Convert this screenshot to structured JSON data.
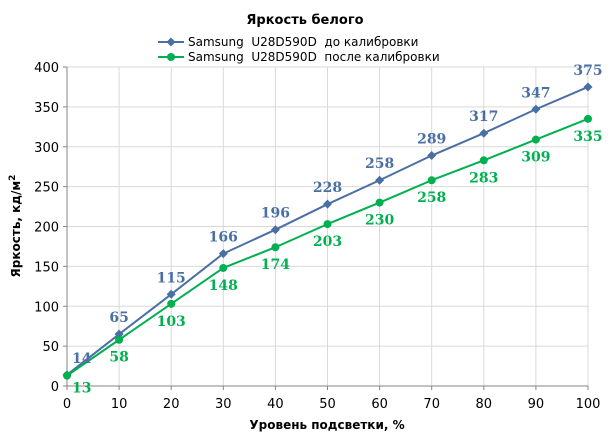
{
  "chart_data": {
    "type": "line",
    "title": "Яркость белого",
    "xlabel": "Уровень подсветки, %",
    "ylabel": "Яркость, кд/м²",
    "ylabel_main": "Яркость, кд/м",
    "ylabel_sup": "2",
    "x": [
      0,
      10,
      20,
      30,
      40,
      50,
      60,
      70,
      80,
      90,
      100
    ],
    "xlim": [
      0,
      100
    ],
    "ylim": [
      0,
      400
    ],
    "xticks": [
      0,
      10,
      20,
      30,
      40,
      50,
      60,
      70,
      80,
      90,
      100
    ],
    "yticks": [
      0,
      50,
      100,
      150,
      200,
      250,
      300,
      350,
      400
    ],
    "grid": true,
    "legend_position": "top",
    "series": [
      {
        "name": "Samsung  U28D590D  до калибровки",
        "color": "#4a6fa5",
        "marker": "diamond",
        "label_position": "above",
        "values": [
          14,
          65,
          115,
          166,
          196,
          228,
          258,
          289,
          317,
          347,
          375
        ]
      },
      {
        "name": "Samsung  U28D590D  после калибровки",
        "color": "#00b050",
        "marker": "circle",
        "label_position": "below",
        "values": [
          13,
          58,
          103,
          148,
          174,
          203,
          230,
          258,
          283,
          309,
          335
        ]
      }
    ]
  }
}
